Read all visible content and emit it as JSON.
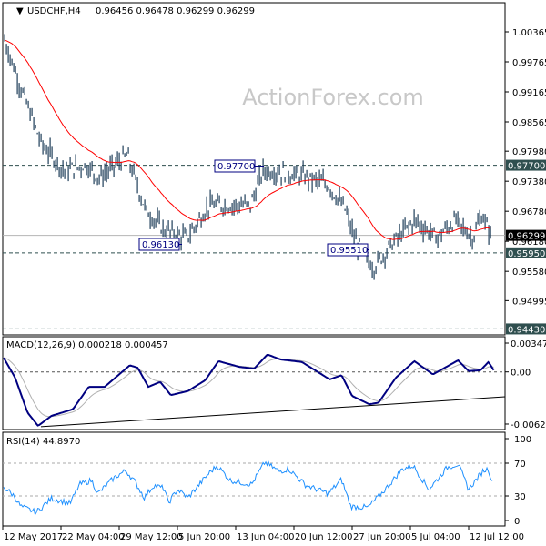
{
  "header": {
    "symbol": "USDCHF,H4",
    "ohlc": "0.96456 0.96478 0.96299 0.96299"
  },
  "watermark": "ActionForex.com",
  "colors": {
    "bars": "#1e3d59",
    "ma": "#ff0000",
    "macd": "#000080",
    "signal": "#b0b0b0",
    "rsi": "#1e90ff",
    "level_box": "#2f4f4f",
    "current_box": "#000000"
  },
  "chart_data": [
    {
      "type": "bar",
      "title": "USDCHF,H4",
      "y_ticks": [
        "1.00365",
        "0.99765",
        "0.99165",
        "0.98565",
        "0.97980",
        "0.97380",
        "0.96780",
        "0.96180",
        "0.95580",
        "0.94995"
      ],
      "x_ticks": [
        {
          "label": "12 May 2017",
          "t": "2017-05-12 00:00"
        },
        {
          "label": "22 May 04:00",
          "t": "2017-05-22 04:00"
        },
        {
          "label": "29 May 12:00",
          "t": "2017-05-29 12:00"
        },
        {
          "label": "5 Jun 20:00",
          "t": "2017-06-05 20:00"
        },
        {
          "label": "13 Jun 04:00",
          "t": "2017-06-13 04:00"
        },
        {
          "label": "20 Jun 12:00",
          "t": "2017-06-20 12:00"
        },
        {
          "label": "27 Jun 20:00",
          "t": "2017-06-27 20:00"
        },
        {
          "label": "5 Jul 04:00",
          "t": "2017-07-05 04:00"
        },
        {
          "label": "12 Jul 12:00",
          "t": "2017-07-12 12:00"
        }
      ],
      "close": [
        [
          "2017-05-12 08:00",
          1.002
        ],
        [
          "2017-05-15 00:00",
          0.993
        ],
        [
          "2017-05-18 16:00",
          0.9815
        ],
        [
          "2017-05-22 12:00",
          0.976
        ],
        [
          "2017-05-25 08:00",
          0.977
        ],
        [
          "2017-05-27 00:00",
          0.9745
        ],
        [
          "2017-05-30 12:00",
          0.979
        ],
        [
          "2017-06-01 20:00",
          0.968
        ],
        [
          "2017-06-04 04:00",
          0.964
        ],
        [
          "2017-06-07 00:00",
          0.9625
        ],
        [
          "2017-06-09 20:00",
          0.969
        ],
        [
          "2017-06-15 00:00",
          0.969
        ],
        [
          "2017-06-16 16:00",
          0.976
        ],
        [
          "2017-06-21 08:00",
          0.975
        ],
        [
          "2017-06-24 20:00",
          0.973
        ],
        [
          "2017-06-27 00:00",
          0.968
        ],
        [
          "2017-06-28 04:00",
          0.962
        ],
        [
          "2017-06-30 12:00",
          0.9565
        ],
        [
          "2017-07-02 16:00",
          0.961
        ],
        [
          "2017-07-05 16:00",
          0.966
        ],
        [
          "2017-07-08 12:00",
          0.9625
        ],
        [
          "2017-07-10 20:00",
          0.966
        ],
        [
          "2017-07-13 00:00",
          0.9625
        ],
        [
          "2017-07-14 04:00",
          0.967
        ],
        [
          "2017-07-15 08:00",
          0.963
        ]
      ],
      "levels": [
        {
          "label": "0.97700",
          "value": 0.977
        },
        {
          "label": "0.95950",
          "value": 0.9595
        },
        {
          "label": "0.94430",
          "value": 0.9443
        }
      ],
      "current": {
        "label": "0.96299",
        "value": 0.96299
      },
      "annotations": [
        {
          "label": "0.97700",
          "value": 0.977
        },
        {
          "label": "0.96130",
          "value": 0.9613
        },
        {
          "label": "0.95510",
          "value": 0.9551
        }
      ]
    },
    {
      "type": "line",
      "title": "MACD(12,26,9) 0.000218 0.000457",
      "y_ticks": [
        "0.003478",
        "0.00",
        "-0.006288"
      ],
      "macd": [
        [
          "2017-05-12 04:00",
          0.0017
        ],
        [
          "2017-05-14 04:00",
          -0.0007
        ],
        [
          "2017-05-16 08:00",
          -0.0049
        ],
        [
          "2017-05-18 04:00",
          -0.0065
        ],
        [
          "2017-05-20 12:00",
          -0.0053
        ],
        [
          "2017-05-23 16:00",
          -0.0045
        ],
        [
          "2017-05-25 16:00",
          -0.0018
        ],
        [
          "2017-05-27 16:00",
          -0.0018
        ],
        [
          "2017-05-30 20:00",
          0.0008
        ],
        [
          "2017-05-31 20:00",
          0.0005
        ],
        [
          "2017-06-02 04:00",
          -0.0018
        ],
        [
          "2017-06-03 16:00",
          -0.0012
        ],
        [
          "2017-06-05 00:00",
          -0.0028
        ],
        [
          "2017-06-07 04:00",
          -0.0023
        ],
        [
          "2017-06-09 08:00",
          -0.001
        ],
        [
          "2017-06-11 00:00",
          0.0013
        ],
        [
          "2017-06-13 16:00",
          0.0006
        ],
        [
          "2017-06-15 12:00",
          0.0004
        ],
        [
          "2017-06-17 04:00",
          0.0021
        ],
        [
          "2017-06-18 20:00",
          0.0015
        ],
        [
          "2017-06-21 12:00",
          0.0012
        ],
        [
          "2017-06-25 00:00",
          -0.0009
        ],
        [
          "2017-06-26 12:00",
          -0.0004
        ],
        [
          "2017-06-27 20:00",
          -0.0029
        ],
        [
          "2017-06-30 00:00",
          -0.0039
        ],
        [
          "2017-07-01 04:00",
          -0.0037
        ],
        [
          "2017-07-03 08:00",
          -0.0007
        ],
        [
          "2017-07-05 16:00",
          0.0013
        ],
        [
          "2017-07-08 00:00",
          -0.0003
        ],
        [
          "2017-07-11 04:00",
          0.0014
        ],
        [
          "2017-07-12 12:00",
          0.0001
        ],
        [
          "2017-07-14 00:00",
          0.0002
        ],
        [
          "2017-07-15 00:00",
          0.0012
        ],
        [
          "2017-07-15 16:00",
          0.0002
        ]
      ],
      "trendline": [
        [
          "2017-05-18 16:00",
          -0.0066
        ],
        [
          "2017-07-16 04:00",
          -0.003
        ]
      ]
    },
    {
      "type": "line",
      "title": "RSI(14) 44.8970",
      "y_ticks": [
        "100",
        "70",
        "30",
        "0"
      ],
      "ylim": [
        0,
        100
      ],
      "rsi": [
        [
          "2017-05-12 04:00",
          41
        ],
        [
          "2017-05-14 00:00",
          30
        ],
        [
          "2017-05-15 04:00",
          17
        ],
        [
          "2017-05-17 20:00",
          10
        ],
        [
          "2017-05-20 12:00",
          27
        ],
        [
          "2017-05-23 08:00",
          21
        ],
        [
          "2017-05-24 12:00",
          44
        ],
        [
          "2017-05-26 00:00",
          49
        ],
        [
          "2017-05-26 20:00",
          33
        ],
        [
          "2017-05-28 20:00",
          52
        ],
        [
          "2017-05-30 08:00",
          61
        ],
        [
          "2017-05-31 12:00",
          47
        ],
        [
          "2017-06-01 16:00",
          28
        ],
        [
          "2017-06-02 20:00",
          43
        ],
        [
          "2017-06-04 04:00",
          39
        ],
        [
          "2017-06-04 16:00",
          21
        ],
        [
          "2017-06-05 20:00",
          38
        ],
        [
          "2017-06-07 04:00",
          28
        ],
        [
          "2017-06-09 20:00",
          58
        ],
        [
          "2017-06-10 20:00",
          67
        ],
        [
          "2017-06-12 12:00",
          49
        ],
        [
          "2017-06-15 04:00",
          44
        ],
        [
          "2017-06-16 20:00",
          71
        ],
        [
          "2017-06-18 16:00",
          60
        ],
        [
          "2017-06-19 20:00",
          63
        ],
        [
          "2017-06-22 00:00",
          43
        ],
        [
          "2017-06-24 20:00",
          33
        ],
        [
          "2017-06-26 12:00",
          50
        ],
        [
          "2017-06-27 16:00",
          17
        ],
        [
          "2017-06-29 20:00",
          16
        ],
        [
          "2017-07-02 00:00",
          38
        ],
        [
          "2017-07-04 04:00",
          63
        ],
        [
          "2017-07-05 12:00",
          67
        ],
        [
          "2017-07-07 12:00",
          38
        ],
        [
          "2017-07-09 20:00",
          65
        ],
        [
          "2017-07-11 04:00",
          69
        ],
        [
          "2017-07-12 12:00",
          38
        ],
        [
          "2017-07-14 08:00",
          61
        ],
        [
          "2017-07-15 00:00",
          63
        ],
        [
          "2017-07-15 12:00",
          45
        ]
      ]
    }
  ]
}
